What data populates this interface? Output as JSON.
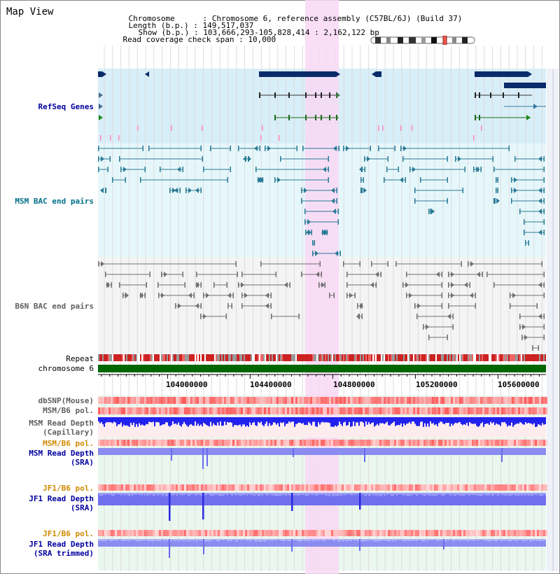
{
  "title": "Map View",
  "header": {
    "chromosome_key": "Chromosome",
    "chromosome_val": "Chromosome 6, reference assembly (C57BL/6J) (Build 37)",
    "length_key": "Length (b.p.)",
    "length_val": "149,517,037",
    "show_key": "Show (b.p.)",
    "show_val": "103,666,293-105,828,414 : 2,162,122 bp",
    "coverage_key": "Read coverage check span",
    "coverage_val": "10,000"
  },
  "tracks": {
    "refseq": "RefSeq Genes",
    "msm_bac": "MSM BAC end pairs",
    "b6n_bac": "B6N BAC end pairs",
    "repeat": "Repeat",
    "chromosome": "chromosome 6",
    "dbsnp": "dbSNP(Mouse)",
    "msm_b6_pol_1": "MSM/B6 pol.",
    "msm_read_depth_cap_1": "MSM Read Depth",
    "msm_read_depth_cap_2": "(Capillary)",
    "msm_b6_pol_2": "MSM/B6 pol.",
    "msm_read_depth_sra_1": "MSM Read Depth",
    "msm_read_depth_sra_2": "(SRA)",
    "jf1_b6_pol_1": "JF1/B6 pol.",
    "jf1_read_depth_sra_1": "JF1 Read Depth",
    "jf1_read_depth_sra_2": "(SRA)",
    "jf1_b6_pol_2": "JF1/B6 pol.",
    "jf1_read_depth_trim_1": "JF1 Read Depth",
    "jf1_read_depth_trim_2": "(SRA trimmed)"
  },
  "ruler": {
    "ticks": [
      "104000000",
      "104400000",
      "104800000",
      "105200000",
      "105600000"
    ]
  },
  "colors": {
    "highlight": "#f8d8f5",
    "refseq_bg": "#d8eef9",
    "msm_bg": "#e6f7fb",
    "b6n_bg": "#f4f4f4",
    "gene_dark": "#0a2a6a",
    "teal": "#2a7b95",
    "chromosome_bar": "#006600"
  }
}
